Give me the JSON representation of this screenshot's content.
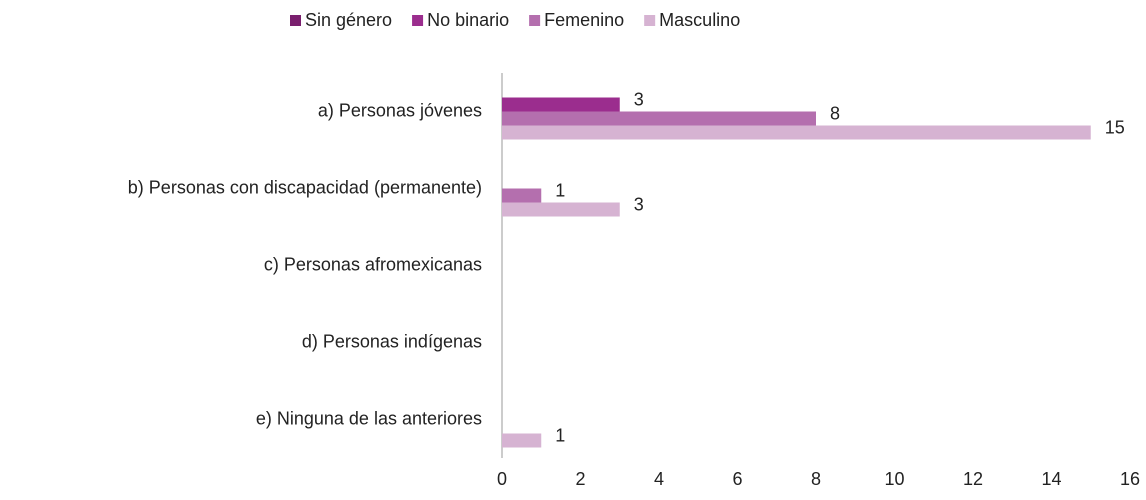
{
  "chart_data": {
    "type": "hbar",
    "categories": [
      "a) Personas jóvenes",
      "b) Personas con discapacidad (permanente)",
      "c) Personas afromexicanas",
      "d) Personas indígenas",
      "e) Ninguna de las anteriores"
    ],
    "series": [
      {
        "name": "Sin género",
        "color": "#7a1f6e",
        "values": [
          null,
          null,
          null,
          null,
          null
        ]
      },
      {
        "name": "No binario",
        "color": "#9b2d8e",
        "values": [
          3,
          null,
          null,
          null,
          null
        ]
      },
      {
        "name": "Femenino",
        "color": "#b46fae",
        "values": [
          8,
          1,
          null,
          null,
          null
        ]
      },
      {
        "name": "Masculino",
        "color": "#d6b3d2",
        "values": [
          15,
          3,
          null,
          null,
          1
        ]
      }
    ],
    "xlim": [
      0,
      16
    ],
    "xticks": [
      0,
      2,
      4,
      6,
      8,
      10,
      12,
      14,
      16
    ],
    "grid": false,
    "legend": "top"
  }
}
